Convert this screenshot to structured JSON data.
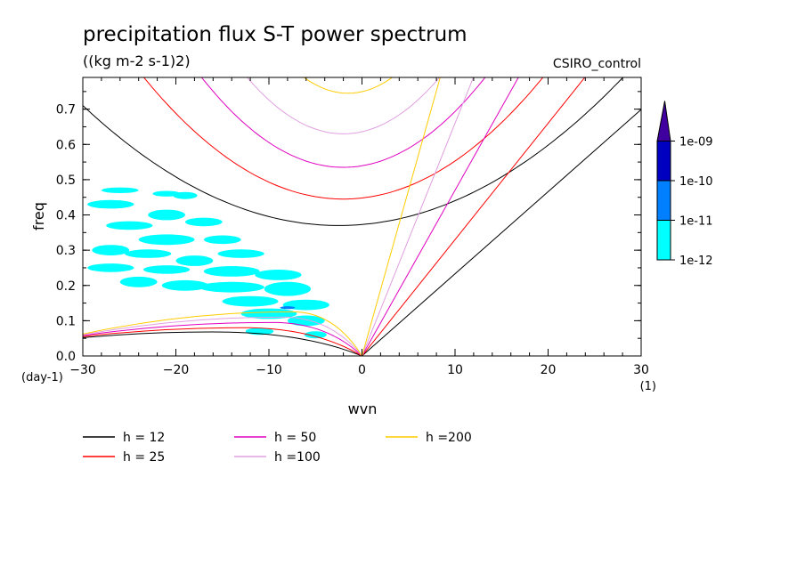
{
  "chart_data": {
    "type": "contour",
    "title": "precipitation flux S-T power spectrum",
    "subtitle": "((kg m-2 s-1)2)",
    "run_label": "CSIRO_control",
    "xlabel": "wvn",
    "ylabel": "freq",
    "x_unit": "(1)",
    "y_unit": "(day-1)",
    "xlim": [
      -30,
      30
    ],
    "ylim": [
      0,
      0.79
    ],
    "x_ticks": [
      -30,
      -20,
      -10,
      0,
      10,
      20,
      30
    ],
    "y_ticks": [
      0.0,
      0.1,
      0.2,
      0.3,
      0.4,
      0.5,
      0.6,
      0.7
    ],
    "colorbar": {
      "labels": [
        "1e-12",
        "1e-11",
        "1e-10",
        "1e-09"
      ],
      "colors": [
        "#00ffff",
        "#0080ff",
        "#0000c0",
        "#4000a0"
      ]
    },
    "legend": [
      {
        "label": "h = 12",
        "color": "#000000"
      },
      {
        "label": "h = 25",
        "color": "#ff0000"
      },
      {
        "label": "h = 50",
        "color": "#e000c0"
      },
      {
        "label": "h =100",
        "color": "#e0a0e0"
      },
      {
        "label": "h =200",
        "color": "#ffcc00"
      }
    ],
    "dispersion_curves": {
      "equivalent_depths": [
        12,
        25,
        50,
        100,
        200
      ],
      "colors": [
        "#000000",
        "#ff0000",
        "#e000c0",
        "#e0a0e0",
        "#ffcc00"
      ],
      "intercept": [
        0.37,
        0.445,
        0.535,
        0.63,
        0.745
      ],
      "min_k": [
        -2.5,
        -2.0,
        -2.0,
        -2.0,
        -1.5
      ],
      "curvature": [
        0.00045,
        0.00075,
        0.0011,
        0.0015,
        0.002
      ],
      "kelvin_slope": [
        0.0233,
        0.033,
        0.047,
        0.066,
        0.094
      ],
      "mrg_peak": [
        0.068,
        0.08,
        0.095,
        0.11,
        0.125
      ],
      "mrg_peak_k": [
        -15,
        -12,
        -9,
        -8,
        -7
      ],
      "mrg_left": [
        0.052,
        0.055,
        0.058,
        0.06,
        0.062
      ]
    },
    "shaded_regions": [
      {
        "level": "1e-12",
        "k": -26,
        "w": 0.47,
        "rk": 2.0,
        "rw": 0.008
      },
      {
        "level": "1e-12",
        "k": -21,
        "w": 0.46,
        "rk": 1.5,
        "rw": 0.008
      },
      {
        "level": "1e-12",
        "k": -19,
        "w": 0.455,
        "rk": 1.3,
        "rw": 0.01
      },
      {
        "level": "1e-12",
        "k": -27,
        "w": 0.43,
        "rk": 2.5,
        "rw": 0.012
      },
      {
        "level": "1e-12",
        "k": -21,
        "w": 0.4,
        "rk": 2.0,
        "rw": 0.015
      },
      {
        "level": "1e-12",
        "k": -17,
        "w": 0.38,
        "rk": 2.0,
        "rw": 0.012
      },
      {
        "level": "1e-12",
        "k": -25,
        "w": 0.37,
        "rk": 2.5,
        "rw": 0.012
      },
      {
        "level": "1e-12",
        "k": -15,
        "w": 0.33,
        "rk": 2.0,
        "rw": 0.012
      },
      {
        "level": "1e-12",
        "k": -21,
        "w": 0.33,
        "rk": 3.0,
        "rw": 0.015
      },
      {
        "level": "1e-12",
        "k": -27,
        "w": 0.3,
        "rk": 2.0,
        "rw": 0.015
      },
      {
        "level": "1e-12",
        "k": -23,
        "w": 0.29,
        "rk": 2.5,
        "rw": 0.012
      },
      {
        "level": "1e-12",
        "k": -13,
        "w": 0.29,
        "rk": 2.5,
        "rw": 0.012
      },
      {
        "level": "1e-12",
        "k": -18,
        "w": 0.27,
        "rk": 2.0,
        "rw": 0.015
      },
      {
        "level": "1e-12",
        "k": -27,
        "w": 0.25,
        "rk": 2.5,
        "rw": 0.012
      },
      {
        "level": "1e-12",
        "k": -21,
        "w": 0.245,
        "rk": 2.5,
        "rw": 0.012
      },
      {
        "level": "1e-12",
        "k": -14,
        "w": 0.24,
        "rk": 3.0,
        "rw": 0.015
      },
      {
        "level": "1e-12",
        "k": -9,
        "w": 0.23,
        "rk": 2.5,
        "rw": 0.015
      },
      {
        "level": "1e-12",
        "k": -24,
        "w": 0.21,
        "rk": 2.0,
        "rw": 0.015
      },
      {
        "level": "1e-12",
        "k": -19,
        "w": 0.2,
        "rk": 2.5,
        "rw": 0.015
      },
      {
        "level": "1e-12",
        "k": -14,
        "w": 0.195,
        "rk": 3.5,
        "rw": 0.015
      },
      {
        "level": "1e-12",
        "k": -8,
        "w": 0.19,
        "rk": 2.5,
        "rw": 0.02
      },
      {
        "level": "1e-12",
        "k": -12,
        "w": 0.155,
        "rk": 3.0,
        "rw": 0.015
      },
      {
        "level": "1e-12",
        "k": -6,
        "w": 0.145,
        "rk": 2.5,
        "rw": 0.015
      },
      {
        "level": "1e-12",
        "k": -10,
        "w": 0.12,
        "rk": 3.0,
        "rw": 0.015
      },
      {
        "level": "1e-12",
        "k": -6,
        "w": 0.1,
        "rk": 2.0,
        "rw": 0.015
      },
      {
        "level": "1e-12",
        "k": -11,
        "w": 0.07,
        "rk": 1.5,
        "rw": 0.01
      },
      {
        "level": "1e-12",
        "k": -5,
        "w": 0.06,
        "rk": 1.2,
        "rw": 0.01
      },
      {
        "level": "1e-11",
        "k": -8,
        "w": 0.137,
        "rk": 0.8,
        "rw": 0.004
      }
    ]
  }
}
